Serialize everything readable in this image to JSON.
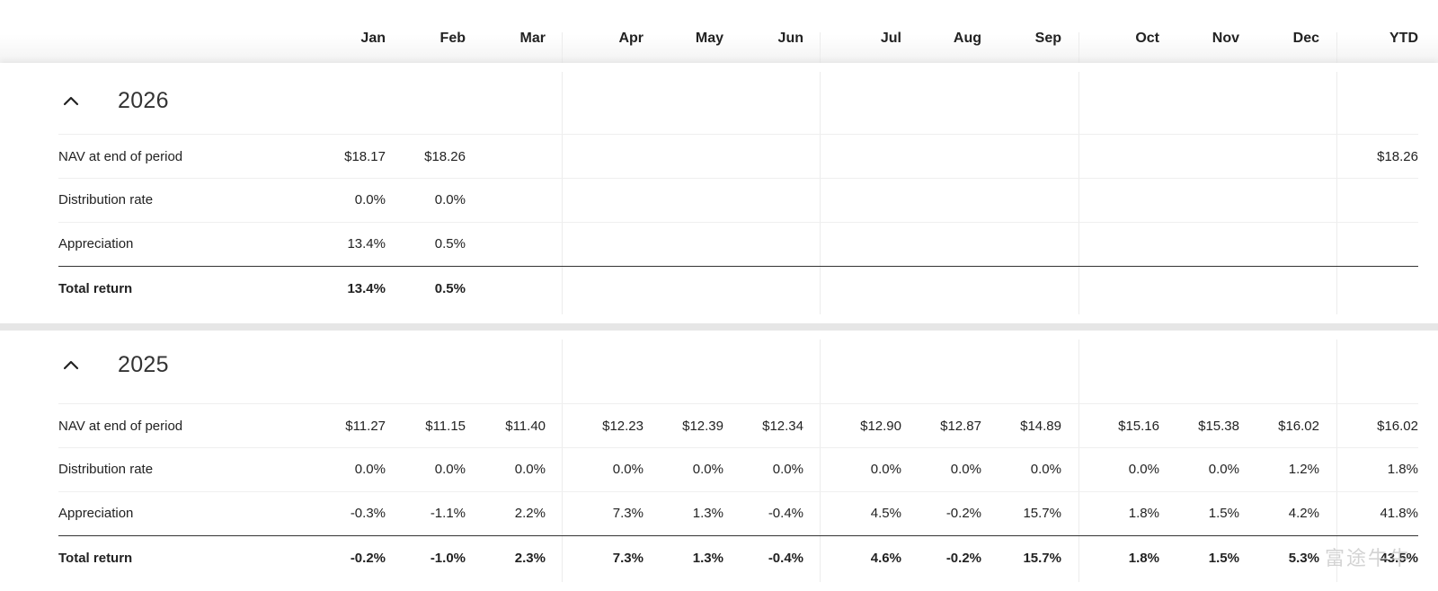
{
  "months": [
    "Jan",
    "Feb",
    "Mar",
    "Apr",
    "May",
    "Jun",
    "Jul",
    "Aug",
    "Sep",
    "Oct",
    "Nov",
    "Dec",
    "YTD"
  ],
  "years": [
    {
      "year": "2026",
      "rows": [
        {
          "label": "NAV at end of period",
          "values": [
            "$18.17",
            "$18.26",
            "",
            "",
            "",
            "",
            "",
            "",
            "",
            "",
            "",
            "",
            "$18.26"
          ]
        },
        {
          "label": "Distribution rate",
          "values": [
            "0.0%",
            "0.0%",
            "",
            "",
            "",
            "",
            "",
            "",
            "",
            "",
            "",
            "",
            ""
          ]
        },
        {
          "label": "Appreciation",
          "values": [
            "13.4%",
            "0.5%",
            "",
            "",
            "",
            "",
            "",
            "",
            "",
            "",
            "",
            "",
            ""
          ]
        },
        {
          "label": "Total return",
          "values": [
            "13.4%",
            "0.5%",
            "",
            "",
            "",
            "",
            "",
            "",
            "",
            "",
            "",
            "",
            ""
          ]
        }
      ]
    },
    {
      "year": "2025",
      "rows": [
        {
          "label": "NAV at end of period",
          "values": [
            "$11.27",
            "$11.15",
            "$11.40",
            "$12.23",
            "$12.39",
            "$12.34",
            "$12.90",
            "$12.87",
            "$14.89",
            "$15.16",
            "$15.38",
            "$16.02",
            "$16.02"
          ]
        },
        {
          "label": "Distribution rate",
          "values": [
            "0.0%",
            "0.0%",
            "0.0%",
            "0.0%",
            "0.0%",
            "0.0%",
            "0.0%",
            "0.0%",
            "0.0%",
            "0.0%",
            "0.0%",
            "1.2%",
            "1.8%"
          ]
        },
        {
          "label": "Appreciation",
          "values": [
            "-0.3%",
            "-1.1%",
            "2.2%",
            "7.3%",
            "1.3%",
            "-0.4%",
            "4.5%",
            "-0.2%",
            "15.7%",
            "1.8%",
            "1.5%",
            "4.2%",
            "41.8%"
          ]
        },
        {
          "label": "Total return",
          "values": [
            "-0.2%",
            "-1.0%",
            "2.3%",
            "7.3%",
            "1.3%",
            "-0.4%",
            "4.6%",
            "-0.2%",
            "15.7%",
            "1.8%",
            "1.5%",
            "5.3%",
            "43.5%"
          ]
        }
      ]
    }
  ],
  "icons": {
    "collapse": "chevron-up-icon"
  },
  "watermark": "富途牛牛"
}
